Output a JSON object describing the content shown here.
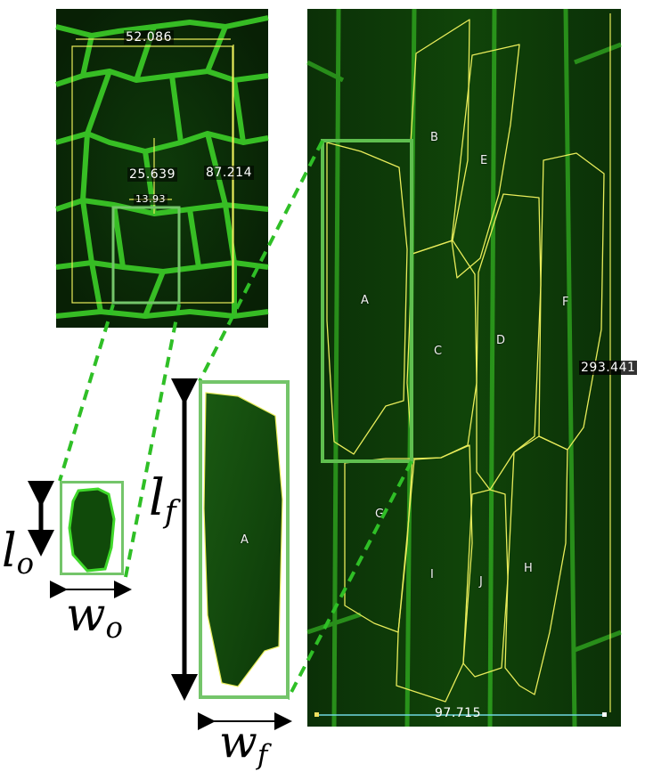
{
  "colors": {
    "tissue_dark": "#0c2a08",
    "tissue_mid": "#114a0c",
    "cell_wall": "#3fdc2a",
    "outline_yellow": "#e8ec5a",
    "highlight_box": "#74c56a",
    "dashed_line": "#2fbf26",
    "scale_bar": "#6fd7e0"
  },
  "top_image": {
    "width_measure": "52.086",
    "length_measure": "87.214",
    "inner_length_measure": "25.639",
    "inner_width_measure": "13.93"
  },
  "right_image": {
    "length_measure": "293.441",
    "scale_bar_measure": "97.715",
    "cell_labels": [
      "A",
      "B",
      "C",
      "D",
      "E",
      "F",
      "G",
      "H",
      "I",
      "J"
    ]
  },
  "zoomed_cell": {
    "label": "A"
  },
  "symbols": {
    "l_o": {
      "base": "l",
      "sub": "o"
    },
    "w_o": {
      "base": "w",
      "sub": "o"
    },
    "l_f": {
      "base": "l",
      "sub": "f"
    },
    "w_f": {
      "base": "w",
      "sub": "f"
    }
  },
  "icons": [
    "double-arrow-vertical-icon",
    "double-arrow-horizontal-icon"
  ]
}
